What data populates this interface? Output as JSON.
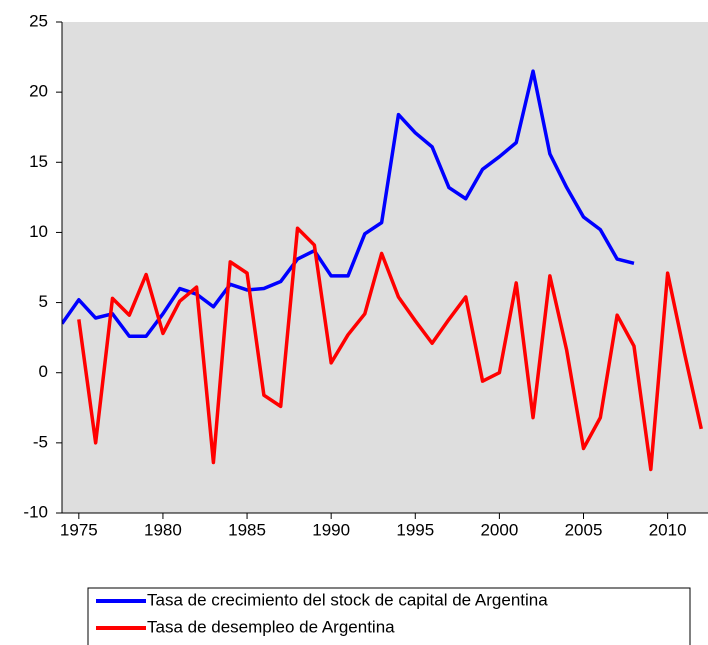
{
  "chart_data": {
    "type": "line",
    "x": [
      1974,
      1975,
      1976,
      1977,
      1978,
      1979,
      1980,
      1981,
      1982,
      1983,
      1984,
      1985,
      1986,
      1987,
      1988,
      1989,
      1990,
      1991,
      1992,
      1993,
      1994,
      1995,
      1996,
      1997,
      1998,
      1999,
      2000,
      2001,
      2002,
      2003,
      2004,
      2005,
      2006,
      2007,
      2008,
      2009,
      2010,
      2011,
      2012
    ],
    "series": [
      {
        "name": "Tasa de crecimiento del stock de capital de Argentina",
        "color": "#0000ff",
        "values": [
          3.5,
          5.2,
          3.9,
          4.2,
          2.6,
          2.6,
          4.2,
          6.0,
          5.6,
          4.7,
          6.3,
          5.9,
          6.0,
          6.5,
          8.1,
          8.7,
          6.9,
          6.9,
          9.9,
          10.7,
          18.4,
          17.1,
          16.1,
          13.2,
          12.4,
          14.5,
          15.4,
          16.4,
          21.5,
          15.6,
          13.2,
          11.1,
          10.2,
          8.1,
          7.8,
          null,
          null,
          null,
          null
        ]
      },
      {
        "name": "Tasa de desempleo de Argentina",
        "color": "#ff0000",
        "values": [
          null,
          3.8,
          -5.0,
          5.3,
          4.1,
          7.0,
          2.8,
          5.1,
          6.1,
          -6.4,
          7.9,
          7.1,
          -1.6,
          -2.4,
          10.3,
          9.1,
          0.7,
          2.7,
          4.2,
          8.5,
          5.4,
          3.7,
          2.1,
          3.8,
          5.4,
          -0.6,
          0.0,
          6.4,
          -3.2,
          6.9,
          1.6,
          -5.4,
          -3.2,
          4.1,
          1.9,
          -6.9,
          7.1,
          1.4,
          -4.0
        ]
      }
    ],
    "xlim": [
      1974,
      2012.4
    ],
    "xticks": [
      1975,
      1980,
      1985,
      1990,
      1995,
      2000,
      2005,
      2010
    ],
    "ylim": [
      -10,
      25
    ],
    "yticks": [
      -10,
      -5,
      0,
      5,
      10,
      15,
      20,
      25
    ],
    "background": "#dedede"
  }
}
